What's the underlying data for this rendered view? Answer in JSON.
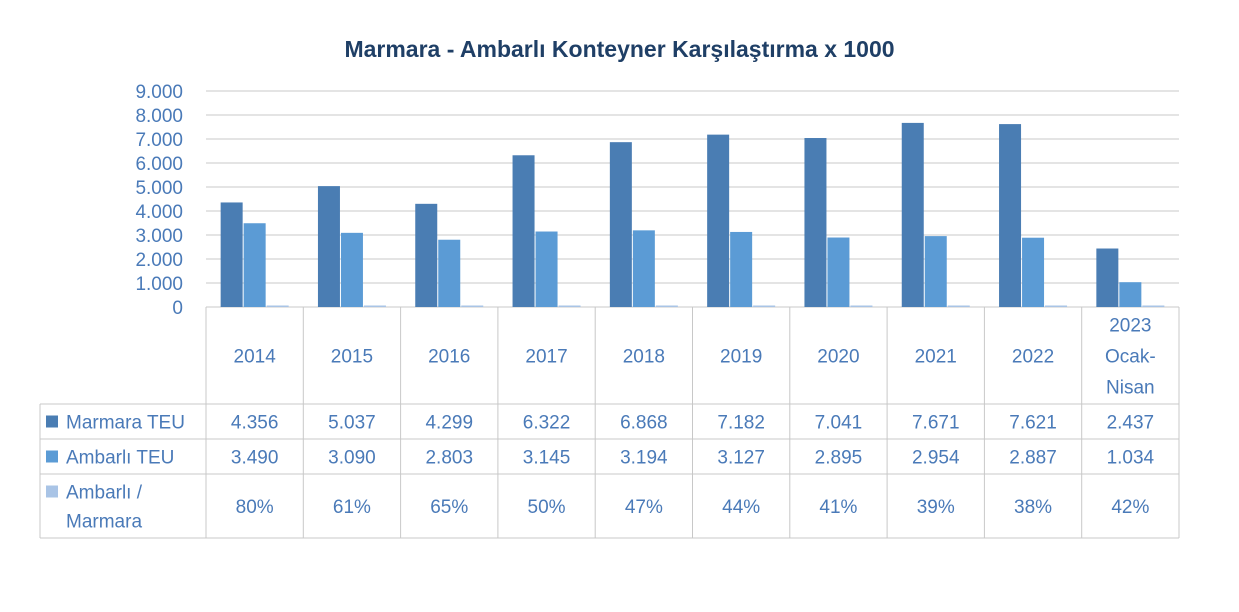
{
  "chart_data": {
    "type": "bar",
    "title": "Marmara - Ambarlı Konteyner Karşılaştırma x 1000",
    "categories": [
      "2014",
      "2015",
      "2016",
      "2017",
      "2018",
      "2019",
      "2020",
      "2021",
      "2022",
      "2023 Ocak-Nisan"
    ],
    "category_lines": [
      [
        "2014"
      ],
      [
        "2015"
      ],
      [
        "2016"
      ],
      [
        "2017"
      ],
      [
        "2018"
      ],
      [
        "2019"
      ],
      [
        "2020"
      ],
      [
        "2021"
      ],
      [
        "2022"
      ],
      [
        "2023",
        "Ocak-",
        "Nisan"
      ]
    ],
    "ylim": [
      0,
      9000
    ],
    "yticks": [
      0,
      1000,
      2000,
      3000,
      4000,
      5000,
      6000,
      7000,
      8000,
      9000
    ],
    "ytick_labels": [
      "0",
      "1.000",
      "2.000",
      "3.000",
      "4.000",
      "5.000",
      "6.000",
      "7.000",
      "8.000",
      "9.000"
    ],
    "grid": true,
    "legend": "data-table",
    "series": [
      {
        "name": "Marmara TEU",
        "name_lines": [
          "Marmara TEU"
        ],
        "color": "#4a7db3",
        "values": [
          4356,
          5037,
          4299,
          6322,
          6868,
          7182,
          7041,
          7671,
          7621,
          2437
        ],
        "labels": [
          "4.356",
          "5.037",
          "4.299",
          "6.322",
          "6.868",
          "7.182",
          "7.041",
          "7.671",
          "7.621",
          "2.437"
        ]
      },
      {
        "name": "Ambarlı TEU",
        "name_lines": [
          "Ambarlı TEU"
        ],
        "color": "#5b9bd5",
        "values": [
          3490,
          3090,
          2803,
          3145,
          3194,
          3127,
          2895,
          2954,
          2887,
          1034
        ],
        "labels": [
          "3.490",
          "3.090",
          "2.803",
          "3.145",
          "3.194",
          "3.127",
          "2.895",
          "2.954",
          "2.887",
          "1.034"
        ]
      },
      {
        "name": "Ambarlı / Marmara",
        "name_lines": [
          "Ambarlı /",
          "Marmara"
        ],
        "color": "#a9c4e6",
        "values": [
          0.8,
          0.61,
          0.65,
          0.5,
          0.47,
          0.44,
          0.41,
          0.39,
          0.38,
          0.42
        ],
        "labels": [
          "80%",
          "61%",
          "65%",
          "50%",
          "47%",
          "44%",
          "41%",
          "39%",
          "38%",
          "42%"
        ]
      }
    ]
  }
}
